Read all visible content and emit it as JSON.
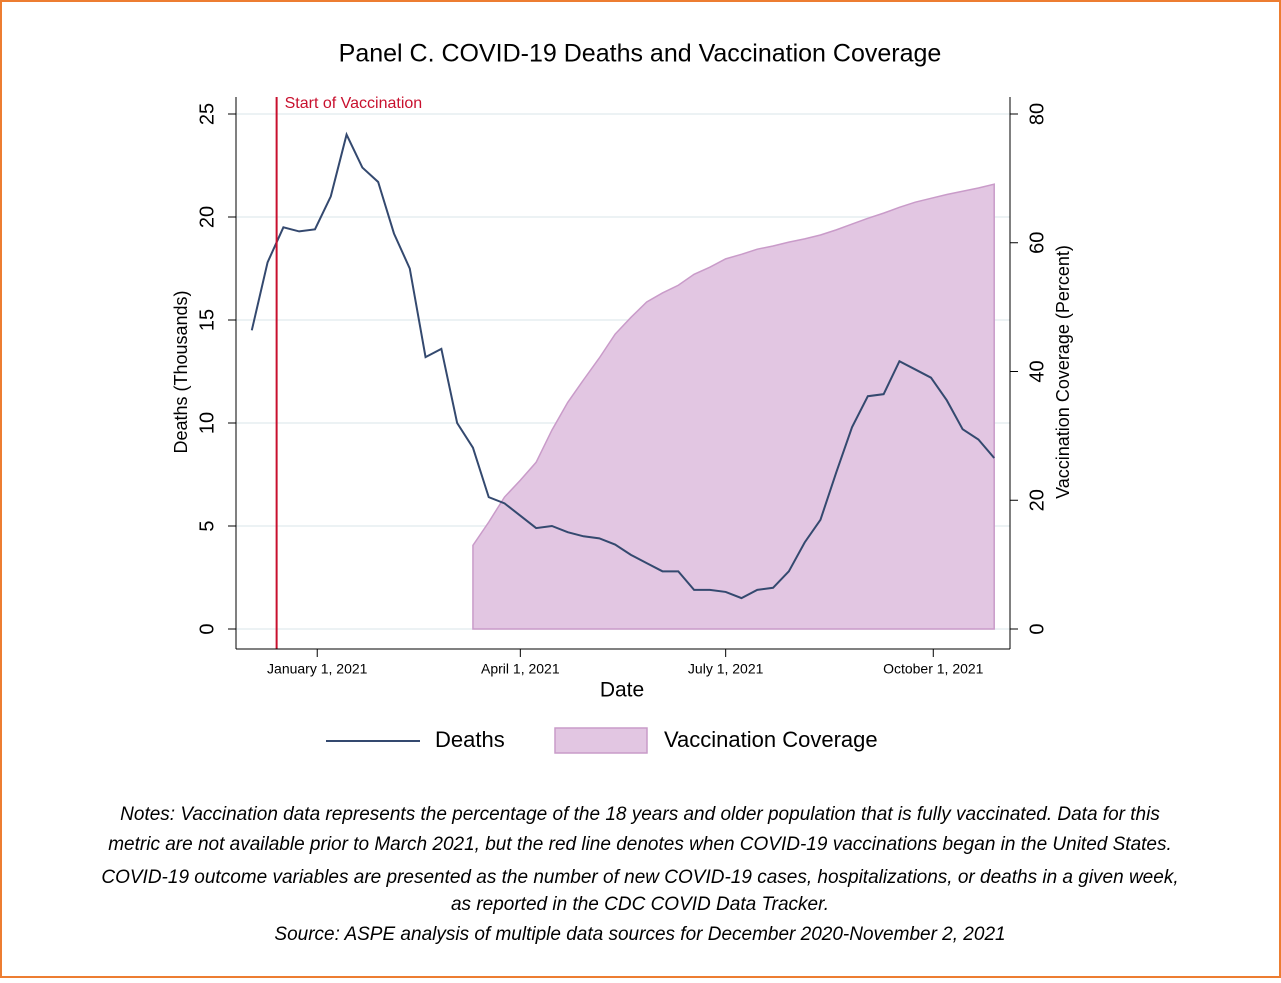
{
  "chart_data": {
    "type": "line_area",
    "title": "Panel C. COVID-19 Deaths and Vaccination Coverage",
    "xlabel": "Date",
    "ylabel": "Deaths (Thousands)",
    "y2label": "Vaccination Coverage (Percent)",
    "x": [
      "2020-12-03",
      "2020-12-10",
      "2020-12-17",
      "2020-12-24",
      "2020-12-31",
      "2021-01-07",
      "2021-01-14",
      "2021-01-21",
      "2021-01-28",
      "2021-02-04",
      "2021-02-11",
      "2021-02-18",
      "2021-02-25",
      "2021-03-04",
      "2021-03-11",
      "2021-03-18",
      "2021-03-25",
      "2021-04-01",
      "2021-04-08",
      "2021-04-15",
      "2021-04-22",
      "2021-04-29",
      "2021-05-06",
      "2021-05-13",
      "2021-05-20",
      "2021-05-27",
      "2021-06-03",
      "2021-06-10",
      "2021-06-17",
      "2021-06-24",
      "2021-07-01",
      "2021-07-08",
      "2021-07-15",
      "2021-07-22",
      "2021-07-29",
      "2021-08-05",
      "2021-08-12",
      "2021-08-19",
      "2021-08-26",
      "2021-09-02",
      "2021-09-09",
      "2021-09-16",
      "2021-09-23",
      "2021-09-30",
      "2021-10-07",
      "2021-10-14",
      "2021-10-21",
      "2021-10-28"
    ],
    "series": [
      {
        "name": "Deaths",
        "color": "#34496f",
        "kind": "line",
        "values": [
          14.5,
          17.8,
          19.5,
          19.3,
          19.4,
          21.0,
          24.0,
          22.4,
          21.7,
          19.2,
          17.5,
          13.2,
          13.6,
          10.0,
          8.8,
          6.4,
          6.1,
          5.5,
          4.9,
          5.0,
          4.7,
          4.5,
          4.4,
          4.1,
          3.6,
          3.2,
          2.8,
          2.8,
          1.9,
          1.9,
          1.8,
          1.5,
          1.9,
          2.0,
          2.8,
          4.2,
          5.3,
          7.6,
          9.8,
          11.3,
          11.4,
          13.0,
          12.6,
          12.2,
          11.1,
          9.7,
          9.2,
          8.3
        ]
      },
      {
        "name": "Vaccination Coverage",
        "color": "#e2c6e2",
        "edge_color": "#c99bc9",
        "kind": "area",
        "axis": "y2",
        "values": [
          null,
          null,
          null,
          null,
          null,
          null,
          null,
          null,
          null,
          null,
          null,
          null,
          null,
          null,
          13.0,
          16.6,
          20.5,
          23.1,
          25.9,
          30.9,
          35.2,
          38.7,
          42.1,
          45.8,
          48.4,
          50.8,
          52.2,
          53.4,
          55.1,
          56.2,
          57.5,
          58.2,
          59.0,
          59.5,
          60.1,
          60.6,
          61.2,
          62.0,
          62.9,
          63.8,
          64.6,
          65.5,
          66.3,
          66.9,
          67.5,
          68.0,
          68.5,
          69.1
        ]
      }
    ],
    "xlim": [
      "2020-11-26",
      "2021-11-04"
    ],
    "xticks": [
      {
        "value": "2021-01-01",
        "label": "January 1, 2021"
      },
      {
        "value": "2021-04-01",
        "label": "April 1, 2021"
      },
      {
        "value": "2021-07-01",
        "label": "July 1, 2021"
      },
      {
        "value": "2021-10-01",
        "label": "October 1, 2021"
      }
    ],
    "ylim": [
      0,
      25
    ],
    "yticks": [
      0,
      5,
      10,
      15,
      20,
      25
    ],
    "y2lim": [
      0,
      80
    ],
    "y2ticks": [
      0,
      20,
      40,
      60,
      80
    ],
    "grid": true,
    "annotation": {
      "x": "2020-12-14",
      "text": "Start of Vaccination",
      "color": "#c8102e"
    },
    "legend": "bottom",
    "notes": [
      "Notes: Vaccination data represents the percentage of the 18 years and older population that is fully vaccinated. Data for this",
      "metric are not available prior to March 2021, but the red line denotes when COVID-19 vaccinations began in the United States.",
      "COVID-19 outcome variables are presented as the number of new COVID-19 cases, hospitalizations, or deaths in a given week,",
      "as reported in the CDC COVID Data Tracker."
    ],
    "source": "Source: ASPE analysis of multiple data sources for December 2020-November 2, 2021"
  }
}
